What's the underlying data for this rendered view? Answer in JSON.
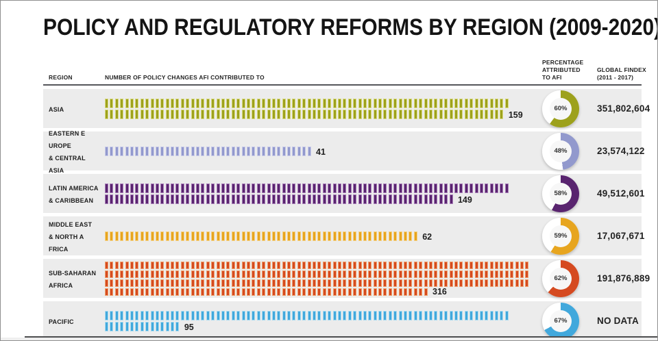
{
  "title": "POLICY AND REGULATORY REFORMS BY REGION (2009-2020)",
  "header": {
    "region": "REGION",
    "policy_changes": "NUMBER OF POLICY CHANGES AFI CONTRIBUTED TO",
    "percentage": "PERCENTAGE\nATTRIBUTED\nTO AFI",
    "findex": "GLOBAL FINDEX\n(2011 - 2017)"
  },
  "rows": [
    {
      "region_label": "ASIA",
      "count": "159",
      "ticks_per_row": [
        80,
        79
      ],
      "pct": "60%",
      "pct_value": 60,
      "findex": "351,802,604",
      "color": "#9da11c",
      "color_light": "#d8da7f"
    },
    {
      "region_label": "EASTERN E\nUROPE\n& CENTRAL\nASIA",
      "count": "41",
      "ticks_per_row": [
        41
      ],
      "pct": "48%",
      "pct_value": 48,
      "findex": "23,574,122",
      "color": "#9299cd",
      "color_light": "#c9cce9"
    },
    {
      "region_label": "LATIN AMERICA\n& CARIBBEAN",
      "count": "149",
      "ticks_per_row": [
        80,
        69
      ],
      "pct": "58%",
      "pct_value": 58,
      "findex": "49,512,601",
      "color": "#59246f",
      "color_light": "#a77cb8"
    },
    {
      "region_label": "MIDDLE EAST\n& NORTH A\nFRICA",
      "count": "62",
      "ticks_per_row": [
        62
      ],
      "pct": "59%",
      "pct_value": 59,
      "findex": "17,067,671",
      "color": "#e7a51f",
      "color_light": "#f4d189"
    },
    {
      "region_label": "SUB-SAHARAN\nAFRICA",
      "count": "316",
      "ticks_per_row": [
        84,
        84,
        84,
        64
      ],
      "pct": "62%",
      "pct_value": 62,
      "findex": "191,876,889",
      "color": "#d54a20",
      "color_light": "#f0a26d"
    },
    {
      "region_label": "PACIFIC",
      "count": "95",
      "ticks_per_row": [
        80,
        15
      ],
      "pct": "67%",
      "pct_value": 67,
      "findex": "NO DATA",
      "color": "#41a8dc",
      "color_light": "#a9dbf0"
    }
  ],
  "chart_data": {
    "type": "bar",
    "subtype": "pictogram",
    "title": "POLICY AND REGULATORY REFORMS BY REGION (2009-2020)",
    "categories": [
      "ASIA",
      "EASTERN EUROPE & CENTRAL ASIA",
      "LATIN AMERICA & CARIBBEAN",
      "MIDDLE EAST & NORTH AFRICA",
      "SUB-SAHARAN AFRICA",
      "PACIFIC"
    ],
    "series": [
      {
        "name": "NUMBER OF POLICY CHANGES AFI CONTRIBUTED TO",
        "values": [
          159,
          41,
          149,
          62,
          316,
          95
        ]
      },
      {
        "name": "PERCENTAGE ATTRIBUTED TO AFI (%)",
        "values": [
          60,
          48,
          58,
          59,
          62,
          67
        ]
      },
      {
        "name": "GLOBAL FINDEX (2011 - 2017)",
        "values": [
          351802604,
          23574122,
          49512601,
          17067671,
          191876889,
          null
        ]
      }
    ],
    "notes": "PACIFIC Global Findex shown as NO DATA; percentages rendered as donut charts",
    "colors": [
      "#9da11c",
      "#9299cd",
      "#59246f",
      "#e7a51f",
      "#d54a20",
      "#41a8dc"
    ],
    "legend_position": "none",
    "grid": false
  }
}
